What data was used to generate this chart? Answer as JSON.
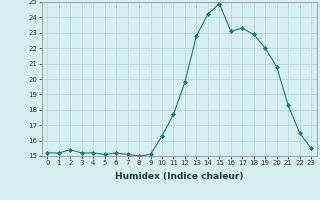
{
  "x": [
    0,
    1,
    2,
    3,
    4,
    5,
    6,
    7,
    8,
    9,
    10,
    11,
    12,
    13,
    14,
    15,
    16,
    17,
    18,
    19,
    20,
    21,
    22,
    23
  ],
  "y": [
    15.2,
    15.2,
    15.4,
    15.2,
    15.2,
    15.1,
    15.2,
    15.1,
    15.0,
    15.1,
    16.3,
    17.7,
    19.8,
    22.8,
    24.2,
    24.9,
    23.1,
    23.3,
    22.9,
    22.0,
    20.8,
    18.3,
    16.5,
    15.5
  ],
  "line_color": "#1a7a6e",
  "marker": "D",
  "marker_size": 2.0,
  "bg_color": "#d6f0f0",
  "grid_color": "#b0d4d4",
  "xlabel": "Humidex (Indice chaleur)",
  "ylim": [
    15,
    25
  ],
  "xlim_left": -0.5,
  "xlim_right": 23.5,
  "yticks": [
    15,
    16,
    17,
    18,
    19,
    20,
    21,
    22,
    23,
    24,
    25
  ],
  "xticks": [
    0,
    1,
    2,
    3,
    4,
    5,
    6,
    7,
    8,
    9,
    10,
    11,
    12,
    13,
    14,
    15,
    16,
    17,
    18,
    19,
    20,
    21,
    22,
    23
  ],
  "tick_fontsize": 5.0,
  "xlabel_fontsize": 6.5,
  "xlabel_color": "#1a3a3a",
  "spine_color": "#888888"
}
